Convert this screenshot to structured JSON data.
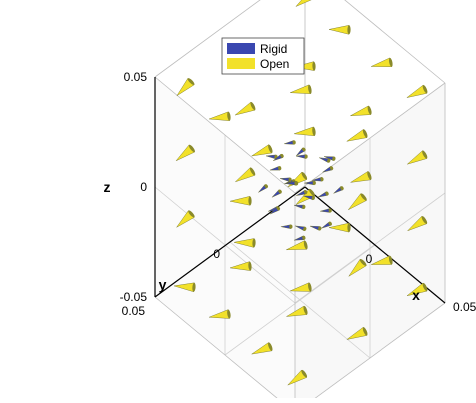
{
  "chart_data": {
    "type": "scatter",
    "variant": "3d-cone",
    "title": "",
    "xlabel": "x",
    "ylabel": "y",
    "zlabel": "z",
    "xlim": [
      -0.05,
      0.05
    ],
    "ylim": [
      -0.05,
      0.05
    ],
    "zlim": [
      -0.05,
      0.05
    ],
    "ticks": {
      "x": [
        "0",
        "0.05"
      ],
      "y": [
        "0.05",
        "0"
      ],
      "z": [
        "0.05",
        "0",
        "-0.05"
      ]
    },
    "grid": true,
    "box": true,
    "legend": {
      "position": "top-center"
    },
    "series": [
      {
        "name": "Rigid",
        "color": "#3a47b0",
        "points": [
          {
            "x": 0.0,
            "y": 0.0,
            "z": 0.017
          },
          {
            "x": 0.01,
            "y": -0.01,
            "z": 0.015
          },
          {
            "x": -0.01,
            "y": 0.01,
            "z": 0.015
          },
          {
            "x": 0.012,
            "y": 0.005,
            "z": 0.012
          },
          {
            "x": -0.012,
            "y": -0.004,
            "z": 0.013
          },
          {
            "x": 0.005,
            "y": 0.012,
            "z": 0.012
          },
          {
            "x": 0.016,
            "y": 0.0,
            "z": 0.006
          },
          {
            "x": -0.016,
            "y": 0.0,
            "z": 0.006
          },
          {
            "x": 0.0,
            "y": 0.016,
            "z": 0.006
          },
          {
            "x": 0.0,
            "y": -0.016,
            "z": 0.006
          },
          {
            "x": 0.011,
            "y": 0.011,
            "z": 0.004
          },
          {
            "x": -0.011,
            "y": -0.011,
            "z": 0.004
          },
          {
            "x": 0.018,
            "y": 0.0,
            "z": 0.0
          },
          {
            "x": -0.018,
            "y": 0.0,
            "z": 0.0
          },
          {
            "x": 0.0,
            "y": 0.018,
            "z": 0.0
          },
          {
            "x": 0.0,
            "y": -0.018,
            "z": 0.0
          },
          {
            "x": 0.013,
            "y": -0.013,
            "z": 0.0
          },
          {
            "x": -0.013,
            "y": 0.013,
            "z": 0.0
          },
          {
            "x": 0.016,
            "y": 0.005,
            "z": -0.006
          },
          {
            "x": -0.016,
            "y": -0.005,
            "z": -0.006
          },
          {
            "x": 0.006,
            "y": 0.015,
            "z": -0.006
          },
          {
            "x": -0.005,
            "y": -0.016,
            "z": -0.006
          },
          {
            "x": 0.01,
            "y": 0.01,
            "z": -0.012
          },
          {
            "x": -0.01,
            "y": -0.01,
            "z": -0.012
          },
          {
            "x": 0.012,
            "y": -0.006,
            "z": -0.013
          },
          {
            "x": -0.012,
            "y": 0.006,
            "z": -0.013
          },
          {
            "x": 0.0,
            "y": 0.0,
            "z": -0.017
          },
          {
            "x": 0.006,
            "y": 0.0,
            "z": 0.0
          },
          {
            "x": -0.006,
            "y": 0.0,
            "z": 0.0
          },
          {
            "x": 0.0,
            "y": 0.006,
            "z": 0.006
          }
        ]
      },
      {
        "name": "Open",
        "color": "#f2e12a",
        "points": [
          {
            "x": -0.04,
            "y": 0.04,
            "z": 0.045
          },
          {
            "x": -0.015,
            "y": 0.04,
            "z": 0.045
          },
          {
            "x": 0.015,
            "y": 0.04,
            "z": 0.045
          },
          {
            "x": 0.04,
            "y": 0.04,
            "z": 0.045
          },
          {
            "x": -0.04,
            "y": 0.0,
            "z": 0.045
          },
          {
            "x": 0.0,
            "y": 0.0,
            "z": 0.045
          },
          {
            "x": 0.04,
            "y": 0.0,
            "z": 0.045
          },
          {
            "x": -0.04,
            "y": -0.04,
            "z": 0.045
          },
          {
            "x": -0.015,
            "y": -0.04,
            "z": 0.045
          },
          {
            "x": 0.015,
            "y": -0.04,
            "z": 0.045
          },
          {
            "x": 0.04,
            "y": -0.04,
            "z": 0.045
          },
          {
            "x": -0.04,
            "y": 0.04,
            "z": 0.015
          },
          {
            "x": 0.0,
            "y": 0.04,
            "z": 0.015
          },
          {
            "x": 0.04,
            "y": 0.04,
            "z": 0.015
          },
          {
            "x": -0.04,
            "y": 0.0,
            "z": 0.015
          },
          {
            "x": 0.04,
            "y": 0.0,
            "z": 0.015
          },
          {
            "x": -0.04,
            "y": -0.04,
            "z": 0.015
          },
          {
            "x": 0.0,
            "y": -0.04,
            "z": 0.015
          },
          {
            "x": 0.04,
            "y": -0.04,
            "z": 0.015
          },
          {
            "x": -0.04,
            "y": 0.04,
            "z": -0.015
          },
          {
            "x": 0.0,
            "y": 0.04,
            "z": -0.015
          },
          {
            "x": 0.04,
            "y": 0.04,
            "z": -0.015
          },
          {
            "x": -0.04,
            "y": 0.0,
            "z": -0.015
          },
          {
            "x": 0.04,
            "y": 0.0,
            "z": -0.015
          },
          {
            "x": -0.04,
            "y": -0.04,
            "z": -0.015
          },
          {
            "x": 0.0,
            "y": -0.04,
            "z": -0.015
          },
          {
            "x": 0.04,
            "y": -0.04,
            "z": -0.015
          },
          {
            "x": -0.04,
            "y": 0.04,
            "z": -0.045
          },
          {
            "x": -0.015,
            "y": 0.04,
            "z": -0.045
          },
          {
            "x": 0.015,
            "y": 0.04,
            "z": -0.045
          },
          {
            "x": 0.04,
            "y": 0.04,
            "z": -0.045
          },
          {
            "x": -0.04,
            "y": 0.0,
            "z": -0.045
          },
          {
            "x": 0.0,
            "y": 0.0,
            "z": -0.045
          },
          {
            "x": 0.04,
            "y": 0.0,
            "z": -0.045
          },
          {
            "x": -0.04,
            "y": -0.04,
            "z": -0.045
          },
          {
            "x": -0.015,
            "y": -0.04,
            "z": -0.045
          },
          {
            "x": 0.015,
            "y": -0.04,
            "z": -0.045
          },
          {
            "x": 0.04,
            "y": -0.04,
            "z": -0.045
          }
        ]
      }
    ]
  }
}
